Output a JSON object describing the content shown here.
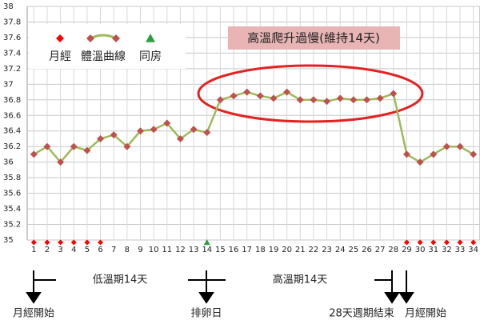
{
  "chart_data": {
    "type": "line",
    "categories": [
      "1",
      "2",
      "3",
      "4",
      "5",
      "6",
      "7",
      "8",
      "9",
      "10",
      "11",
      "12",
      "13",
      "14",
      "15",
      "16",
      "17",
      "18",
      "19",
      "20",
      "21",
      "22",
      "23",
      "24",
      "25",
      "26",
      "27",
      "28",
      "29",
      "30",
      "31",
      "32",
      "33",
      "34"
    ],
    "series": [
      {
        "name": "月經",
        "color": "#ff0000",
        "marker": "diamond",
        "line": false,
        "values": [
          35,
          35,
          35,
          35,
          35,
          35,
          null,
          null,
          null,
          null,
          null,
          null,
          null,
          null,
          null,
          null,
          null,
          null,
          null,
          null,
          null,
          null,
          null,
          null,
          null,
          null,
          null,
          null,
          35,
          35,
          35,
          35,
          35,
          35
        ]
      },
      {
        "name": "體溫曲線",
        "color": "#9bbb59",
        "marker_color": "#c0504d",
        "marker": "diamond",
        "line": true,
        "values": [
          36.1,
          36.2,
          36.0,
          36.2,
          36.15,
          36.3,
          36.35,
          36.2,
          36.4,
          36.42,
          36.5,
          36.3,
          36.42,
          36.38,
          36.8,
          36.85,
          36.9,
          36.85,
          36.82,
          36.9,
          36.8,
          36.8,
          36.78,
          36.82,
          36.8,
          36.8,
          36.82,
          36.88,
          36.1,
          36.0,
          36.1,
          36.2,
          36.2,
          36.1
        ]
      },
      {
        "name": "同房",
        "color": "#2e9e3e",
        "marker": "triangle",
        "line": false,
        "values": [
          null,
          null,
          null,
          null,
          null,
          null,
          null,
          null,
          null,
          null,
          null,
          null,
          null,
          35,
          null,
          null,
          null,
          null,
          null,
          null,
          null,
          null,
          null,
          null,
          null,
          null,
          null,
          null,
          null,
          null,
          null,
          null,
          null,
          null
        ]
      }
    ],
    "ylim": [
      35,
      38
    ],
    "yticks": [
      35,
      35.2,
      35.4,
      35.6,
      35.8,
      36,
      36.2,
      36.4,
      36.6,
      36.8,
      37,
      37.2,
      37.4,
      37.6,
      37.8,
      38
    ],
    "grid": true,
    "annotation": "高溫爬升過慢(維持14天)"
  },
  "timeline": {
    "phases": [
      "低溫期14天",
      "高溫期14天"
    ],
    "events": [
      "月經開始",
      "排卵日",
      "28天週期結束",
      "月經開始"
    ]
  }
}
